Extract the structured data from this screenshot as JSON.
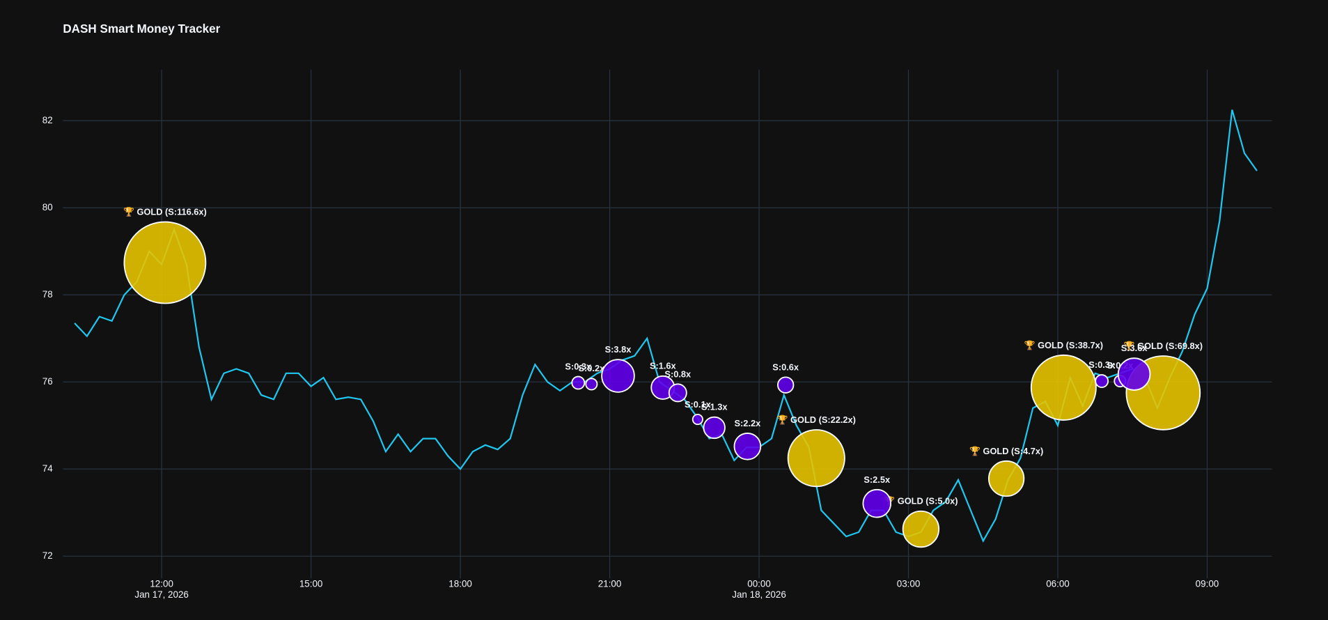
{
  "chart_data": {
    "type": "line",
    "title": "DASH Smart Money Tracker",
    "xlim": [
      "2026-01-17T10:01",
      "2026-01-18T10:18"
    ],
    "ylim": [
      71.49,
      83.17
    ],
    "yticks": [
      72,
      74,
      76,
      78,
      80,
      82
    ],
    "xticks": [
      {
        "value": "2026-01-17T12:00",
        "label": "12:00",
        "date": "Jan 17, 2026"
      },
      {
        "value": "2026-01-17T15:00",
        "label": "15:00"
      },
      {
        "value": "2026-01-17T18:00",
        "label": "18:00"
      },
      {
        "value": "2026-01-17T21:00",
        "label": "21:00"
      },
      {
        "value": "2026-01-18T00:00",
        "label": "00:00",
        "date": "Jan 18, 2026"
      },
      {
        "value": "2026-01-18T03:00",
        "label": "03:00"
      },
      {
        "value": "2026-01-18T06:00",
        "label": "06:00"
      },
      {
        "value": "2026-01-18T09:00",
        "label": "09:00"
      }
    ],
    "grid": true,
    "series": [
      {
        "type": "line",
        "color": "#1ec8f0",
        "x": [
          "2026-01-17T10:15",
          "2026-01-17T10:30",
          "2026-01-17T10:45",
          "2026-01-17T11:00",
          "2026-01-17T11:15",
          "2026-01-17T11:30",
          "2026-01-17T11:45",
          "2026-01-17T12:00",
          "2026-01-17T12:15",
          "2026-01-17T12:30",
          "2026-01-17T12:45",
          "2026-01-17T13:00",
          "2026-01-17T13:15",
          "2026-01-17T13:30",
          "2026-01-17T13:45",
          "2026-01-17T14:00",
          "2026-01-17T14:15",
          "2026-01-17T14:30",
          "2026-01-17T14:45",
          "2026-01-17T15:00",
          "2026-01-17T15:15",
          "2026-01-17T15:30",
          "2026-01-17T15:45",
          "2026-01-17T16:00",
          "2026-01-17T16:15",
          "2026-01-17T16:30",
          "2026-01-17T16:45",
          "2026-01-17T17:00",
          "2026-01-17T17:15",
          "2026-01-17T17:30",
          "2026-01-17T17:45",
          "2026-01-17T18:00",
          "2026-01-17T18:15",
          "2026-01-17T18:30",
          "2026-01-17T18:45",
          "2026-01-17T19:00",
          "2026-01-17T19:15",
          "2026-01-17T19:30",
          "2026-01-17T19:45",
          "2026-01-17T20:00",
          "2026-01-17T20:15",
          "2026-01-17T20:30",
          "2026-01-17T20:45",
          "2026-01-17T21:00",
          "2026-01-17T21:15",
          "2026-01-17T21:30",
          "2026-01-17T21:45",
          "2026-01-17T22:00",
          "2026-01-17T22:15",
          "2026-01-17T22:30",
          "2026-01-17T22:45",
          "2026-01-17T23:00",
          "2026-01-17T23:15",
          "2026-01-17T23:30",
          "2026-01-17T23:45",
          "2026-01-18T00:00",
          "2026-01-18T00:15",
          "2026-01-18T00:30",
          "2026-01-18T00:45",
          "2026-01-18T01:00",
          "2026-01-18T01:15",
          "2026-01-18T01:30",
          "2026-01-18T01:45",
          "2026-01-18T02:00",
          "2026-01-18T02:15",
          "2026-01-18T02:30",
          "2026-01-18T02:45",
          "2026-01-18T03:00",
          "2026-01-18T03:15",
          "2026-01-18T03:30",
          "2026-01-18T03:45",
          "2026-01-18T04:00",
          "2026-01-18T04:15",
          "2026-01-18T04:30",
          "2026-01-18T04:45",
          "2026-01-18T05:00",
          "2026-01-18T05:15",
          "2026-01-18T05:30",
          "2026-01-18T05:45",
          "2026-01-18T06:00",
          "2026-01-18T06:15",
          "2026-01-18T06:30",
          "2026-01-18T06:45",
          "2026-01-18T07:00",
          "2026-01-18T07:15",
          "2026-01-18T07:30",
          "2026-01-18T07:45",
          "2026-01-18T08:00",
          "2026-01-18T08:15",
          "2026-01-18T08:30",
          "2026-01-18T08:45",
          "2026-01-18T09:00",
          "2026-01-18T09:15",
          "2026-01-18T09:30",
          "2026-01-18T09:45",
          "2026-01-18T10:00"
        ],
        "values": [
          77.35,
          77.05,
          77.5,
          77.4,
          78.0,
          78.3,
          79.0,
          78.7,
          79.5,
          78.7,
          76.8,
          75.6,
          76.2,
          76.3,
          76.2,
          75.7,
          75.6,
          76.2,
          76.2,
          75.9,
          76.1,
          75.6,
          75.65,
          75.6,
          75.1,
          74.4,
          74.8,
          74.4,
          74.7,
          74.7,
          74.3,
          74.0,
          74.4,
          74.55,
          74.45,
          74.7,
          75.7,
          76.4,
          76.0,
          75.8,
          76.0,
          76.0,
          76.2,
          76.3,
          76.5,
          76.6,
          77.0,
          76.0,
          75.8,
          75.6,
          75.2,
          74.7,
          74.8,
          74.2,
          74.5,
          74.5,
          74.7,
          75.7,
          75.0,
          74.5,
          73.05,
          72.75,
          72.45,
          72.55,
          73.05,
          73.05,
          72.55,
          72.45,
          72.55,
          73.05,
          73.25,
          73.75,
          73.05,
          72.35,
          72.85,
          73.75,
          74.25,
          75.4,
          75.55,
          75.0,
          76.1,
          75.45,
          76.2,
          76.1,
          76.2,
          76.3,
          76.1,
          75.4,
          76.1,
          76.7,
          77.55,
          78.15,
          79.7,
          82.25,
          81.25,
          80.85
        ]
      },
      {
        "type": "bubble",
        "color": "#e6c300",
        "x": [
          "2026-01-17T12:04",
          "2026-01-18T01:09",
          "2026-01-18T03:15",
          "2026-01-18T04:58",
          "2026-01-18T06:07",
          "2026-01-18T08:07"
        ],
        "values": [
          78.74,
          74.25,
          72.62,
          73.78,
          75.87,
          75.75
        ],
        "sizes": [
          116.6,
          22.2,
          5.0,
          4.7,
          38.7,
          69.8
        ],
        "value_labels": [
          "🏆 GOLD (S:116.6x)",
          "🏆 GOLD (S:22.2x)",
          "🏆 GOLD (S:5.0x)",
          "🏆 GOLD (S:4.7x)",
          "🏆 GOLD (S:38.7x)",
          "🏆 GOLD (S:69.8x)"
        ]
      },
      {
        "type": "bubble",
        "color": "#6200ea",
        "x": [
          "2026-01-17T20:22",
          "2026-01-17T20:38",
          "2026-01-17T21:10",
          "2026-01-17T22:04",
          "2026-01-17T22:22",
          "2026-01-17T22:46",
          "2026-01-17T23:06",
          "2026-01-17T23:46",
          "2026-01-18T00:32",
          "2026-01-18T02:22",
          "2026-01-18T06:53",
          "2026-01-18T07:15",
          "2026-01-18T07:32"
        ],
        "values": [
          75.98,
          75.95,
          76.14,
          75.87,
          75.75,
          75.14,
          74.95,
          74.52,
          75.93,
          73.21,
          76.02,
          76.02,
          76.18
        ],
        "sizes": [
          0.3,
          0.2,
          3.8,
          1.6,
          0.8,
          0.1,
          1.3,
          2.2,
          0.6,
          2.5,
          0.3,
          0.2,
          3.6
        ],
        "value_labels": [
          "S:0.3x",
          "S:0.2x",
          "S:3.8x",
          "S:1.6x",
          "S:0.8x",
          "S:0.1x",
          "S:1.3x",
          "S:2.2x",
          "S:0.6x",
          "S:2.5x",
          "S:0.3x",
          "S:0.2x",
          "S:3.6x"
        ]
      }
    ]
  }
}
